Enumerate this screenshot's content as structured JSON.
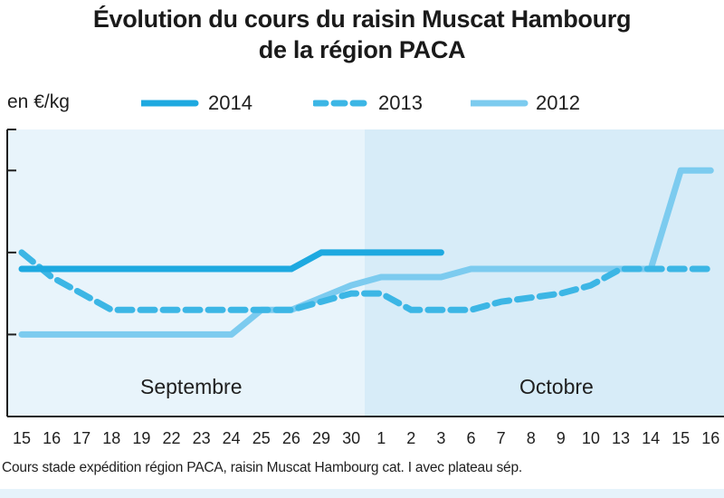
{
  "chart_data": {
    "type": "line",
    "title_line1": "Évolution du cours du raisin Muscat Hambourg",
    "title_line2": "de la région PACA",
    "ylabel": "en €/kg",
    "categories": [
      "15",
      "16",
      "17",
      "18",
      "19",
      "22",
      "23",
      "24",
      "25",
      "26",
      "29",
      "30",
      "1",
      "2",
      "3",
      "6",
      "7",
      "8",
      "9",
      "10",
      "13",
      "14",
      "15",
      "16"
    ],
    "month_labels": [
      "Septembre",
      "Octobre"
    ],
    "series": [
      {
        "name": "2014",
        "values": [
          2.3,
          2.3,
          2.3,
          2.3,
          2.3,
          2.3,
          2.3,
          2.3,
          2.3,
          2.3,
          2.5,
          2.5,
          2.5,
          2.5,
          2.5,
          null,
          null,
          null,
          null,
          null,
          null,
          null,
          null,
          null
        ]
      },
      {
        "name": "2013",
        "values": [
          2.5,
          2.2,
          2.0,
          1.8,
          1.8,
          1.8,
          1.8,
          1.8,
          1.8,
          1.8,
          1.9,
          2.0,
          2.0,
          1.8,
          1.8,
          1.8,
          1.9,
          1.95,
          2.0,
          2.1,
          2.3,
          2.3,
          2.3,
          2.3
        ]
      },
      {
        "name": "2012",
        "values": [
          1.5,
          1.5,
          1.5,
          1.5,
          1.5,
          1.5,
          1.5,
          1.5,
          1.8,
          1.8,
          1.95,
          2.1,
          2.2,
          2.2,
          2.2,
          2.3,
          2.3,
          2.3,
          2.3,
          2.3,
          2.3,
          2.3,
          3.5,
          3.5
        ]
      }
    ],
    "colors": {
      "2014": "#1ea9e0",
      "2013": "#3cb6e5",
      "2012": "#7ccbef"
    },
    "line_styles": {
      "2014": "solid",
      "2013": "dashed",
      "2012": "solid"
    },
    "background_colors": {
      "septembre": "#e8f4fb",
      "octobre": "#d7ecf8"
    },
    "ylim": [
      0.5,
      4.0
    ],
    "grid": false,
    "legend_placement": "top"
  },
  "source_note": "Cours stade expédition région PACA, raisin Muscat Hambourg cat. I avec plateau sép."
}
